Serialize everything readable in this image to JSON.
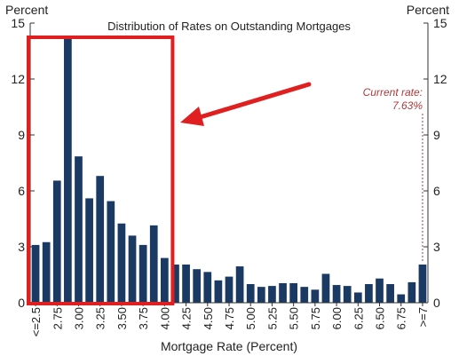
{
  "chart_data": {
    "type": "bar",
    "title": "Distribution of Rates on Outstanding Mortgages",
    "xlabel": "Mortgage Rate (Percent)",
    "ylabel_left": "Percent",
    "ylabel_right": "Percent",
    "ylim": [
      0,
      15
    ],
    "yticks": [
      "0",
      "3",
      "6",
      "9",
      "12",
      "15"
    ],
    "ytick_values": [
      0,
      3,
      6,
      9,
      12,
      15
    ],
    "grid": false,
    "bar_color": "#1b3a63",
    "categories": [
      "<=2.5",
      "2.625",
      "2.75",
      "2.875",
      "3.00",
      "3.125",
      "3.25",
      "3.375",
      "3.50",
      "3.625",
      "3.75",
      "3.875",
      "4.00",
      "4.125",
      "4.25",
      "4.375",
      "4.50",
      "4.625",
      "4.75",
      "4.875",
      "5.00",
      "5.125",
      "5.25",
      "5.375",
      "5.50",
      "5.625",
      "5.75",
      "5.875",
      "6.00",
      "6.125",
      "6.25",
      "6.375",
      "6.50",
      "6.625",
      "6.75",
      "6.875",
      ">=7"
    ],
    "values": [
      3.1,
      3.25,
      6.55,
      14.2,
      7.85,
      5.6,
      6.8,
      5.45,
      4.25,
      3.6,
      3.1,
      4.15,
      2.4,
      2.05,
      2.05,
      1.8,
      1.65,
      1.2,
      1.4,
      1.95,
      1.0,
      0.85,
      0.9,
      1.05,
      1.05,
      0.85,
      0.7,
      1.55,
      0.95,
      0.9,
      0.55,
      1.0,
      1.3,
      1.0,
      0.45,
      1.1,
      2.05
    ],
    "xtick_labels": [
      {
        "index": 0,
        "label": "<=2.5"
      },
      {
        "index": 2,
        "label": "2.75"
      },
      {
        "index": 4,
        "label": "3.00"
      },
      {
        "index": 6,
        "label": "3.25"
      },
      {
        "index": 8,
        "label": "3.50"
      },
      {
        "index": 10,
        "label": "3.75"
      },
      {
        "index": 12,
        "label": "4.00"
      },
      {
        "index": 14,
        "label": "4.25"
      },
      {
        "index": 16,
        "label": "4.50"
      },
      {
        "index": 18,
        "label": "4.75"
      },
      {
        "index": 20,
        "label": "5.00"
      },
      {
        "index": 22,
        "label": "5.25"
      },
      {
        "index": 24,
        "label": "5.50"
      },
      {
        "index": 26,
        "label": "5.75"
      },
      {
        "index": 28,
        "label": "6.00"
      },
      {
        "index": 30,
        "label": "6.25"
      },
      {
        "index": 32,
        "label": "6.50"
      },
      {
        "index": 34,
        "label": "6.75"
      },
      {
        "index": 36,
        "label": ">=7"
      }
    ],
    "annotation": {
      "line1": "Current rate:",
      "line2": "7.63%",
      "color": "#b03a3a",
      "target_index": 36
    },
    "highlight": {
      "color": "#e02020",
      "from_index": 0,
      "to_index": 12
    }
  }
}
